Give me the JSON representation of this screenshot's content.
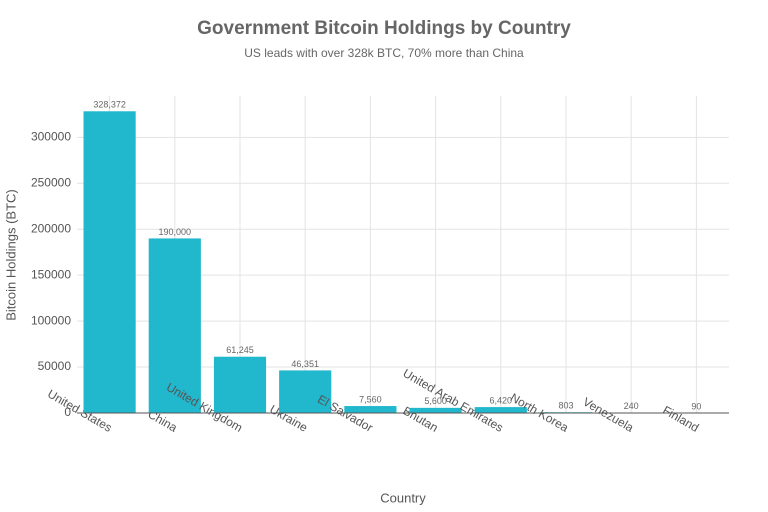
{
  "chart_data": {
    "type": "bar",
    "title": "Government Bitcoin Holdings by Country",
    "subtitle": "US leads with over 328k BTC, 70% more than China",
    "x_label": "Country",
    "y_label": "Bitcoin Holdings (BTC)",
    "categories": [
      "United States",
      "China",
      "United Kingdom",
      "Ukraine",
      "El Salvador",
      "Bhutan",
      "United Arab Emirates",
      "North Korea",
      "Venezuela",
      "Finland"
    ],
    "values": [
      328372,
      190000,
      61245,
      46351,
      7560,
      5600,
      6420,
      803,
      240,
      90
    ],
    "value_labels": [
      "328,372",
      "190,000",
      "61,245",
      "46,351",
      "7,560",
      "5,600",
      "6,420",
      "803",
      "240",
      "90"
    ],
    "color": "#21b7cc",
    "ylim": [
      0,
      345000
    ],
    "yticks": [
      0,
      50000,
      100000,
      150000,
      200000,
      250000,
      300000
    ],
    "grid": true
  }
}
